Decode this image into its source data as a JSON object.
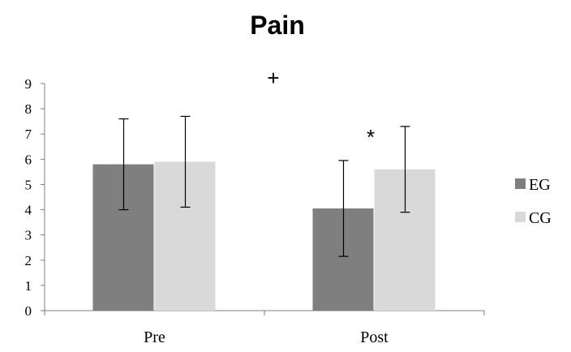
{
  "chart_data": {
    "type": "bar",
    "title": "Pain",
    "xlabel": "",
    "ylabel": "",
    "ylim": [
      0,
      9
    ],
    "yticks": [
      "0",
      "1",
      "2",
      "3",
      "4",
      "5",
      "6",
      "7",
      "8",
      "9"
    ],
    "categories": [
      "Pre",
      "Post"
    ],
    "series": [
      {
        "name": "EG",
        "color": "#7f7f7f",
        "values": [
          5.8,
          4.05
        ],
        "error": [
          1.8,
          1.9
        ]
      },
      {
        "name": "CG",
        "color": "#d9d9d9",
        "values": [
          5.9,
          5.6
        ],
        "error": [
          1.8,
          1.7
        ]
      }
    ],
    "annotations": [
      {
        "text": "+",
        "near": "above between categories"
      },
      {
        "text": "*",
        "near": "above Post EG"
      }
    ],
    "legend": "right",
    "grid": false
  }
}
